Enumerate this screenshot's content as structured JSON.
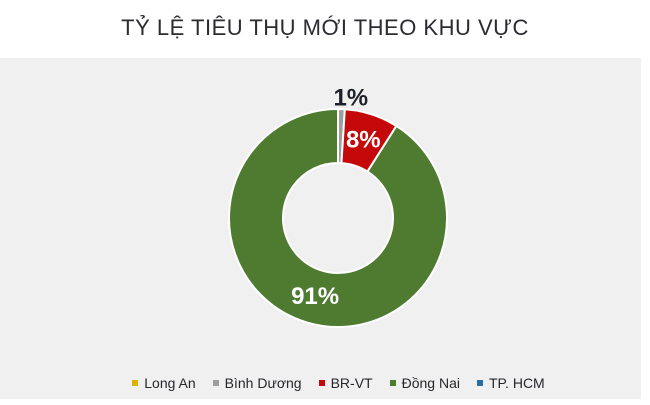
{
  "chart_data": {
    "type": "pie",
    "subtype": "donut",
    "title": "TỶ LỆ TIÊU THỤ MỚI THEO KHU VỰC",
    "categories": [
      "Long An",
      "Bình Dương",
      "BR-VT",
      "Đồng Nai",
      "TP. HCM"
    ],
    "values": [
      0,
      1,
      8,
      91,
      0
    ],
    "unit": "%",
    "data_labels": [
      "",
      "1%",
      "8%",
      "91%",
      ""
    ],
    "colors": [
      "#dfb300",
      "#9e9e9e",
      "#c50808",
      "#4e7b30",
      "#2e6da4"
    ],
    "slice_border_color": "#ffffff",
    "inside_label_color": "#ffffff",
    "outside_label_color": "#1d2129",
    "start_angle_deg": 0,
    "direction": "clockwise",
    "inner_radius_ratio": 0.5,
    "grid": "off",
    "legend_position": "bottom",
    "panel_background": "#f0f0f0",
    "legend_text_color": "#26262b"
  }
}
